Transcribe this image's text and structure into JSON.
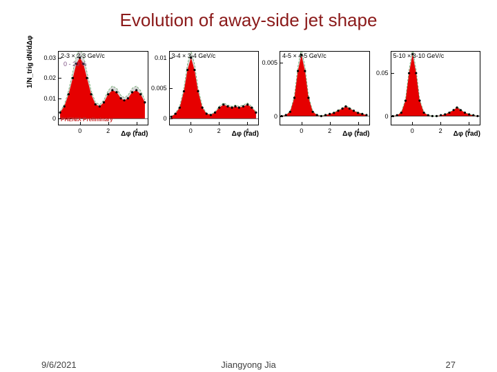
{
  "title": "Evolution of away-side jet shape",
  "yaxis_label": "1/N_trig dN/dΔφ",
  "xaxis_label": "Δφ (rad)",
  "footer": {
    "date": "9/6/2021",
    "author": "Jiangyong Jia",
    "page": "27"
  },
  "colors": {
    "fill": "#e60000",
    "band": "#d6d6d6",
    "marker": "#000000",
    "axis": "#000000",
    "bg": "#ffffff"
  },
  "x_range": [
    -1.5,
    4.8
  ],
  "x_ticks": [
    0,
    2,
    4
  ],
  "panels": [
    {
      "label": "2-3 × 2-3 GeV/c",
      "subtext1": "0 - 20 %",
      "subtext2": "PHENIX Preliminary",
      "y_range": [
        -0.003,
        0.033
      ],
      "y_ticks": [
        0,
        0.01,
        0.02,
        0.03
      ],
      "y_tick_labels": [
        "0",
        "0.01",
        "0.02",
        "0.03"
      ],
      "points": [
        {
          "x": -1.4,
          "y": 0.003
        },
        {
          "x": -1.1,
          "y": 0.006
        },
        {
          "x": -0.8,
          "y": 0.012
        },
        {
          "x": -0.5,
          "y": 0.02
        },
        {
          "x": -0.25,
          "y": 0.027
        },
        {
          "x": 0.0,
          "y": 0.03
        },
        {
          "x": 0.25,
          "y": 0.027
        },
        {
          "x": 0.5,
          "y": 0.02
        },
        {
          "x": 0.8,
          "y": 0.012
        },
        {
          "x": 1.1,
          "y": 0.007
        },
        {
          "x": 1.4,
          "y": 0.006
        },
        {
          "x": 1.7,
          "y": 0.008
        },
        {
          "x": 2.0,
          "y": 0.012
        },
        {
          "x": 2.3,
          "y": 0.014
        },
        {
          "x": 2.6,
          "y": 0.013
        },
        {
          "x": 2.9,
          "y": 0.01
        },
        {
          "x": 3.14,
          "y": 0.009
        },
        {
          "x": 3.4,
          "y": 0.01
        },
        {
          "x": 3.7,
          "y": 0.013
        },
        {
          "x": 4.0,
          "y": 0.014
        },
        {
          "x": 4.3,
          "y": 0.012
        },
        {
          "x": 4.6,
          "y": 0.008
        }
      ],
      "band_scale": 1.15
    },
    {
      "label": "3-4 × 3-4 GeV/c",
      "y_range": [
        -0.001,
        0.011
      ],
      "y_ticks": [
        0,
        0.005,
        0.01
      ],
      "y_tick_labels": [
        "0",
        "0.005",
        "0.01"
      ],
      "points": [
        {
          "x": -1.4,
          "y": 0.0003
        },
        {
          "x": -1.1,
          "y": 0.0008
        },
        {
          "x": -0.8,
          "y": 0.0018
        },
        {
          "x": -0.5,
          "y": 0.0045
        },
        {
          "x": -0.25,
          "y": 0.008
        },
        {
          "x": 0.0,
          "y": 0.01
        },
        {
          "x": 0.25,
          "y": 0.008
        },
        {
          "x": 0.5,
          "y": 0.0045
        },
        {
          "x": 0.8,
          "y": 0.0018
        },
        {
          "x": 1.1,
          "y": 0.0008
        },
        {
          "x": 1.4,
          "y": 0.0006
        },
        {
          "x": 1.7,
          "y": 0.001
        },
        {
          "x": 2.0,
          "y": 0.0018
        },
        {
          "x": 2.3,
          "y": 0.0023
        },
        {
          "x": 2.6,
          "y": 0.002
        },
        {
          "x": 2.9,
          "y": 0.0018
        },
        {
          "x": 3.14,
          "y": 0.002
        },
        {
          "x": 3.4,
          "y": 0.0018
        },
        {
          "x": 3.7,
          "y": 0.002
        },
        {
          "x": 4.0,
          "y": 0.0023
        },
        {
          "x": 4.3,
          "y": 0.0018
        },
        {
          "x": 4.6,
          "y": 0.001
        }
      ],
      "band_scale": 1.12
    },
    {
      "label": "4-5 × 4-5 GeV/c",
      "y_range": [
        -0.0008,
        0.006
      ],
      "y_ticks": [
        0,
        0.005
      ],
      "y_tick_labels": [
        "0",
        "0.005"
      ],
      "points": [
        {
          "x": -1.4,
          "y": 0.0
        },
        {
          "x": -1.1,
          "y": 0.0001
        },
        {
          "x": -0.8,
          "y": 0.0004
        },
        {
          "x": -0.5,
          "y": 0.0017
        },
        {
          "x": -0.25,
          "y": 0.0042
        },
        {
          "x": 0.0,
          "y": 0.0057
        },
        {
          "x": 0.25,
          "y": 0.0042
        },
        {
          "x": 0.5,
          "y": 0.0017
        },
        {
          "x": 0.8,
          "y": 0.0004
        },
        {
          "x": 1.1,
          "y": 0.0001
        },
        {
          "x": 1.4,
          "y": 0.0
        },
        {
          "x": 1.7,
          "y": 0.0001
        },
        {
          "x": 2.0,
          "y": 0.0002
        },
        {
          "x": 2.3,
          "y": 0.0003
        },
        {
          "x": 2.6,
          "y": 0.0005
        },
        {
          "x": 2.9,
          "y": 0.0007
        },
        {
          "x": 3.14,
          "y": 0.0009
        },
        {
          "x": 3.4,
          "y": 0.0007
        },
        {
          "x": 3.7,
          "y": 0.0005
        },
        {
          "x": 4.0,
          "y": 0.0003
        },
        {
          "x": 4.3,
          "y": 0.0002
        },
        {
          "x": 4.6,
          "y": 0.0001
        }
      ],
      "band_scale": 1.1
    },
    {
      "label": "5-10 × 3-10 GeV/c",
      "y_range": [
        -0.01,
        0.075
      ],
      "y_ticks": [
        0,
        0.05
      ],
      "y_tick_labels": [
        "0",
        "0.05"
      ],
      "points": [
        {
          "x": -1.4,
          "y": 0.0
        },
        {
          "x": -1.1,
          "y": 0.001
        },
        {
          "x": -0.8,
          "y": 0.004
        },
        {
          "x": -0.5,
          "y": 0.018
        },
        {
          "x": -0.25,
          "y": 0.05
        },
        {
          "x": 0.0,
          "y": 0.072
        },
        {
          "x": 0.25,
          "y": 0.05
        },
        {
          "x": 0.5,
          "y": 0.018
        },
        {
          "x": 0.8,
          "y": 0.004
        },
        {
          "x": 1.1,
          "y": 0.001
        },
        {
          "x": 1.4,
          "y": 0.0
        },
        {
          "x": 1.7,
          "y": 0.0
        },
        {
          "x": 2.0,
          "y": 0.001
        },
        {
          "x": 2.3,
          "y": 0.002
        },
        {
          "x": 2.6,
          "y": 0.004
        },
        {
          "x": 2.9,
          "y": 0.007
        },
        {
          "x": 3.14,
          "y": 0.01
        },
        {
          "x": 3.4,
          "y": 0.007
        },
        {
          "x": 3.7,
          "y": 0.004
        },
        {
          "x": 4.0,
          "y": 0.002
        },
        {
          "x": 4.3,
          "y": 0.001
        },
        {
          "x": 4.6,
          "y": 0.0
        }
      ],
      "band_scale": 1.08
    }
  ]
}
